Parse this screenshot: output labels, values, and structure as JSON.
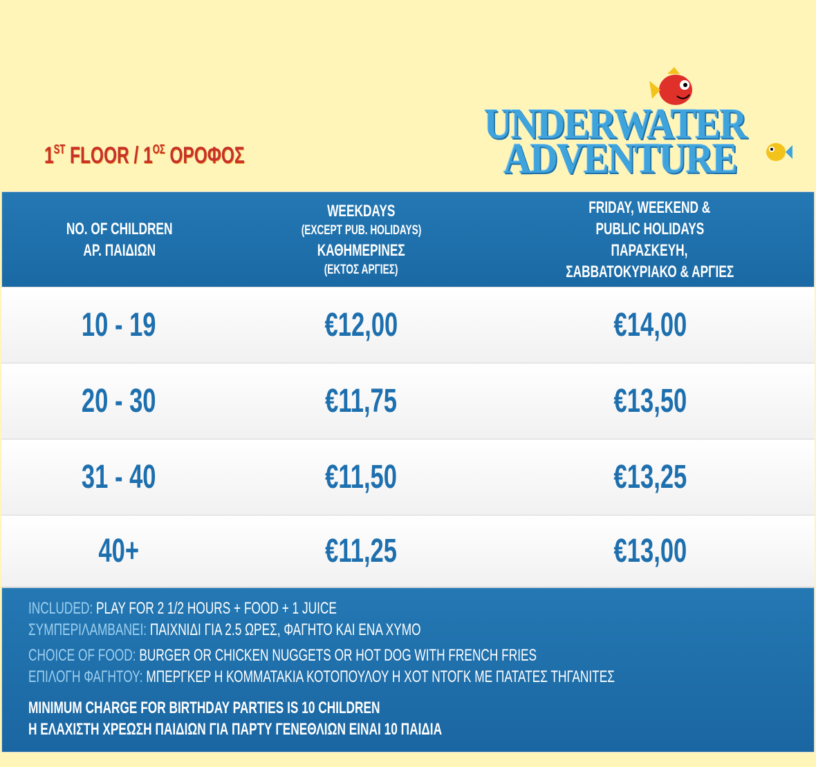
{
  "floor_title": {
    "num1": "1",
    "sup1": "ST",
    "mid": " FLOOR / 1",
    "sup2": "ΟΣ",
    "end": " ΟΡΟΦΟΣ"
  },
  "logo": {
    "line1": "UNDERWATER",
    "line2": "ADVENTURE"
  },
  "header": {
    "col1": [
      "NO. OF CHILDREN",
      "ΑΡ. ΠΑΙΔΙΩΝ"
    ],
    "col2": {
      "line1": "WEEKDAYS",
      "line2": "(EXCEPT PUB. HOLIDAYS)",
      "line3": "ΚΑΘΗΜΕΡΙΝΕΣ",
      "line4": "(ΕΚΤΟΣ ΑΡΓΙΕΣ)"
    },
    "col3": [
      "FRIDAY, WEEKEND &",
      "PUBLIC HOLIDAYS",
      "ΠΑΡΑΣΚΕΥΗ,",
      "ΣΑΒΒΑΤΟΚΥΡΙΑΚΟ & ΑΡΓΙΕΣ"
    ]
  },
  "rows": [
    {
      "children": "10 - 19",
      "weekdays": "€12,00",
      "weekend": "€14,00"
    },
    {
      "children": "20 - 30",
      "weekdays": "€11,75",
      "weekend": "€13,50"
    },
    {
      "children": "31 - 40",
      "weekdays": "€11,50",
      "weekend": "€13,25"
    },
    {
      "children": "40+",
      "weekdays": "€11,25",
      "weekend": "€13,00"
    }
  ],
  "footer": {
    "included_label": "INCLUDED:",
    "included_text": " PLAY FOR 2 1/2 HOURS + FOOD + 1 JUICE",
    "included_gr_label": "ΣΥΜΠΕΡΙΛΑΜΒΑΝΕΙ:",
    "included_gr_text": " ΠΑΙΧΝΙΔΙ ΓΙΑ 2.5 ΩΡΕΣ, ΦΑΓΗΤΟ ΚΑΙ ΕΝΑ ΧΥΜΟ",
    "food_label": "CHOICE OF FOOD:",
    "food_text": " BURGER OR CHICKEN NUGGETS OR HOT DOG WITH FRENCH FRIES",
    "food_gr_label": "ΕΠΙΛΟΓΗ ΦΑΓΗΤΟΥ:",
    "food_gr_text": " ΜΠΕΡΓΚΕΡ Η ΚΟΜΜΑΤΑΚΙΑ ΚΟΤΟΠΟΥΛΟΥ Η ΧΟΤ ΝΤΟΓΚ ΜΕ ΠΑΤΑΤΕΣ ΤΗΓΑΝΙΤΕΣ",
    "minimum": "MINIMUM CHARGE FOR BIRTHDAY PARTIES IS 10 CHILDREN",
    "minimum_gr": "Η ΕΛΑΧΙΣΤΗ ΧΡΕΩΣΗ ΠΑΙΔΙΩΝ ΓΙΑ ΠΑΡΤΥ ΓΕΝΕΘΛΙΩΝ ΕΙΝΑΙ 10 ΠΑΙΔΙΑ"
  }
}
